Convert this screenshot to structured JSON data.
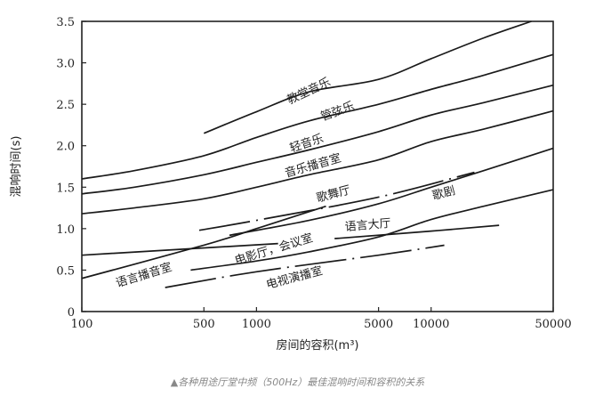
{
  "chart_data": {
    "type": "line",
    "title": "",
    "xlabel": "房间的容积(m³)",
    "ylabel": "混响时间(s)",
    "xscale": "log",
    "xlim": [
      100,
      50000
    ],
    "ylim": [
      0,
      3.5
    ],
    "xticks": [
      "100",
      "500",
      "1000",
      "5000",
      "10000",
      "50000"
    ],
    "xtick_values": [
      100,
      500,
      1000,
      5000,
      10000,
      50000
    ],
    "yticks": [
      "0",
      "0.5",
      "1.0",
      "1.5",
      "2.0",
      "2.5",
      "3.0",
      "3.5"
    ],
    "ytick_values": [
      0,
      0.5,
      1.0,
      1.5,
      2.0,
      2.5,
      3.0,
      3.5
    ],
    "grid": false,
    "line_color": "#1a1a1a",
    "series": [
      {
        "name": "教堂音乐",
        "style": "solid",
        "points": [
          [
            500,
            2.15
          ],
          [
            1000,
            2.41
          ],
          [
            2000,
            2.65
          ],
          [
            5000,
            2.8
          ],
          [
            10000,
            3.05
          ],
          [
            20000,
            3.3
          ],
          [
            37500,
            3.5
          ]
        ]
      },
      {
        "name": "管弦乐",
        "style": "solid",
        "points": [
          [
            100,
            1.6
          ],
          [
            200,
            1.7
          ],
          [
            500,
            1.88
          ],
          [
            1000,
            2.1
          ],
          [
            2000,
            2.3
          ],
          [
            5000,
            2.5
          ],
          [
            10000,
            2.68
          ],
          [
            20000,
            2.85
          ],
          [
            50000,
            3.1
          ]
        ]
      },
      {
        "name": "轻音乐",
        "style": "solid",
        "points": [
          [
            100,
            1.42
          ],
          [
            200,
            1.5
          ],
          [
            500,
            1.65
          ],
          [
            1000,
            1.8
          ],
          [
            2000,
            1.95
          ],
          [
            5000,
            2.17
          ],
          [
            10000,
            2.37
          ],
          [
            20000,
            2.52
          ],
          [
            50000,
            2.73
          ]
        ]
      },
      {
        "name": "音乐播音室",
        "style": "solid",
        "points": [
          [
            100,
            1.18
          ],
          [
            200,
            1.25
          ],
          [
            500,
            1.36
          ],
          [
            1000,
            1.5
          ],
          [
            2000,
            1.65
          ],
          [
            5000,
            1.83
          ],
          [
            10000,
            2.05
          ],
          [
            20000,
            2.2
          ],
          [
            50000,
            2.42
          ]
        ]
      },
      {
        "name": "歌舞厅",
        "style": "dash-dot",
        "points": [
          [
            470,
            0.98
          ],
          [
            1000,
            1.1
          ],
          [
            5000,
            1.38
          ],
          [
            17700,
            1.68
          ]
        ]
      },
      {
        "name": "歌剧",
        "style": "solid",
        "points": [
          [
            700,
            0.92
          ],
          [
            2000,
            1.1
          ],
          [
            5000,
            1.3
          ],
          [
            10000,
            1.5
          ],
          [
            20000,
            1.7
          ],
          [
            50000,
            1.97
          ]
        ]
      },
      {
        "name": "语言大厅",
        "style": "solid",
        "points": [
          [
            100,
            0.68
          ],
          [
            1330,
            0.82
          ]
        ]
      },
      {
        "name": "语言大厅",
        "style": "solid",
        "points": [
          [
            2800,
            0.88
          ],
          [
            10000,
            0.97
          ],
          [
            24500,
            1.04
          ]
        ]
      },
      {
        "name": "电影厅，会议室",
        "style": "solid",
        "points": [
          [
            420,
            0.5
          ],
          [
            1000,
            0.61
          ],
          [
            2000,
            0.72
          ],
          [
            5000,
            0.9
          ],
          [
            10000,
            1.11
          ],
          [
            20000,
            1.27
          ],
          [
            50000,
            1.47
          ]
        ]
      },
      {
        "name": "语言播音室",
        "style": "solid",
        "points": [
          [
            100,
            0.4
          ],
          [
            500,
            0.8
          ],
          [
            1000,
            1.0
          ],
          [
            2500,
            1.27
          ]
        ]
      },
      {
        "name": "电视演播室",
        "style": "dash-dot",
        "points": [
          [
            300,
            0.29
          ],
          [
            1000,
            0.48
          ],
          [
            5000,
            0.68
          ],
          [
            11900,
            0.8
          ]
        ]
      }
    ],
    "annotations": [
      "教堂音乐",
      "管弦乐",
      "轻音乐",
      "音乐播音室",
      "歌舞厅",
      "歌剧",
      "语言大厅",
      "电影厅，会议室",
      "语言播音室",
      "电视演播室"
    ]
  },
  "caption": "▲各种用途厅堂中频（500Hz）最佳混响时间和容积的关系"
}
